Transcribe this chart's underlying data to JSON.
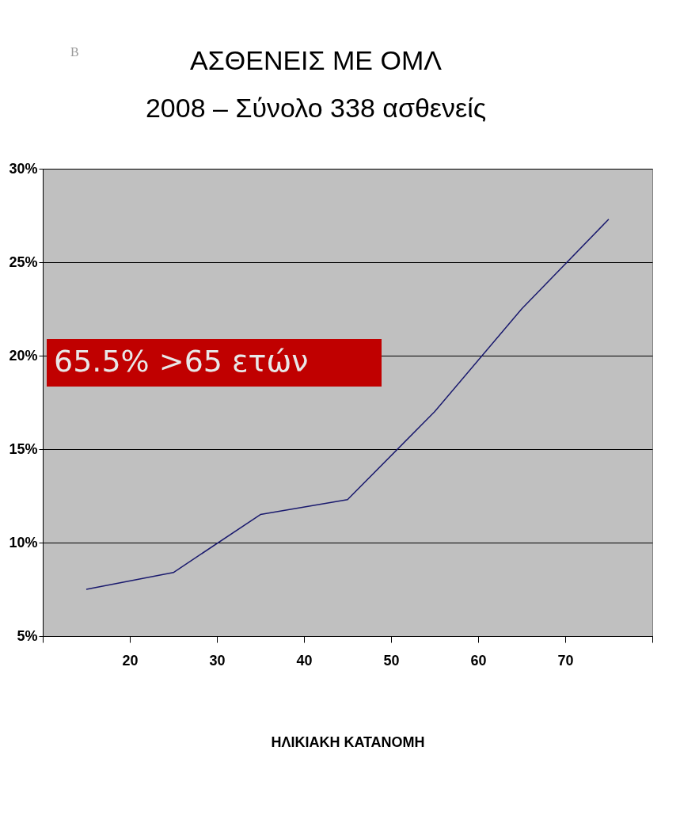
{
  "chart_data": {
    "type": "line",
    "title": [
      "ΑΣΘΕΝΕΙΣ ΜΕ ΟΜΛ",
      "2008 – Σύνολο 338 ασθενείς"
    ],
    "xlabel": "ΗΛΙΚΙΑΚΗ ΚΑΤΑΝΟΜΗ",
    "x": [
      15,
      25,
      35,
      45,
      55,
      65,
      75
    ],
    "series": [
      {
        "color": "#1a1a6e",
        "values": [
          7.5,
          8.4,
          11.5,
          12.3,
          17.0,
          22.5,
          27.3
        ]
      }
    ],
    "xlim": [
      10,
      80
    ],
    "xticks": [
      {
        "value": 10,
        "label": null
      },
      20,
      30,
      40,
      50,
      60,
      70,
      {
        "value": 80,
        "label": null
      }
    ],
    "ylim": [
      5,
      30
    ],
    "yticks": [
      {
        "value": 5,
        "label": "5%"
      },
      {
        "value": 10,
        "label": "10%"
      },
      {
        "value": 15,
        "label": "15%"
      },
      {
        "value": 20,
        "label": "20%"
      },
      {
        "value": 25,
        "label": "25%"
      },
      {
        "value": 30,
        "label": "30%"
      }
    ],
    "grid": "y",
    "marker": "none",
    "line_style": "solid",
    "annotations": [
      "B",
      "65.5% >65 ετών"
    ]
  }
}
